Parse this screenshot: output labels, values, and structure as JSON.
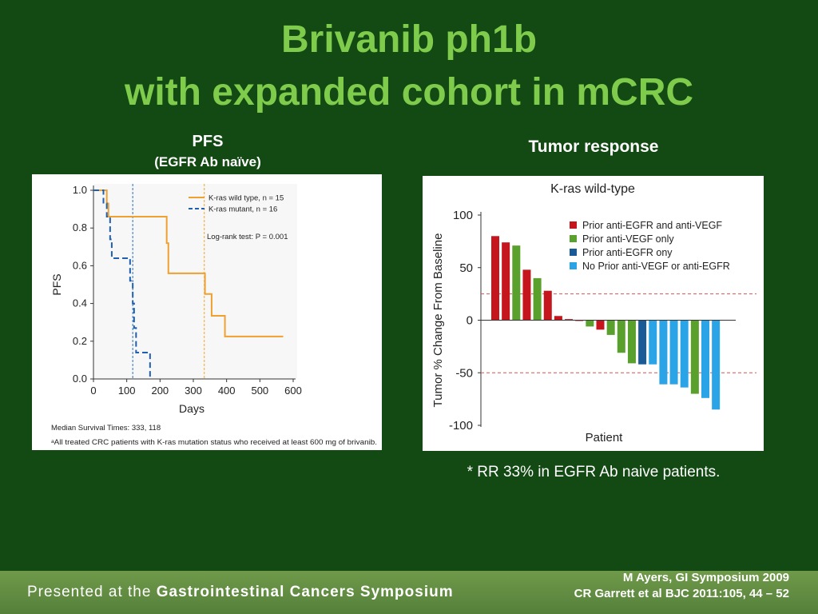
{
  "slide": {
    "title_line1": "Brivanib ph1b",
    "title_line2": "with expanded cohort in mCRC",
    "pfs_heading": "PFS",
    "pfs_subheading": "(EGFR Ab naïve)",
    "tumor_heading": "Tumor response",
    "note": "* RR 33% in EGFR Ab naive patients.",
    "footer_prefix": "Presented at the ",
    "footer_name": "Gastrointestinal Cancers Symposium",
    "citation_1": "M Ayers, GI Symposium 2009",
    "citation_2": "CR Garrett et al BJC 2011:105, 44 – 52"
  },
  "chart_data": [
    {
      "type": "line",
      "ylabel": "PFS",
      "xlabel": "Days",
      "xlim": [
        0,
        600
      ],
      "ylim": [
        0,
        1.0
      ],
      "xticks": [
        "0",
        "100",
        "200",
        "300",
        "400",
        "500",
        "600"
      ],
      "yticks": [
        "0.0",
        "0.2",
        "0.4",
        "0.6",
        "0.8",
        "1.0"
      ],
      "grid": false,
      "legend_position": "top-right",
      "annotation": "Log-rank test: P = 0.001",
      "footnote_1": "Median Survival Times: 333, 118",
      "footnote_2": "ᵃAll treated CRC patients with K-ras mutation status who received at least 600 mg of brivanib.",
      "median_lines": [
        {
          "x": 333,
          "color": "#f5a623"
        },
        {
          "x": 118,
          "color": "#2a6ebb"
        }
      ],
      "series": [
        {
          "name": "K-ras wild type, n = 15",
          "color": "#f0a030",
          "style": "solid",
          "x": [
            0,
            40,
            40,
            45,
            45,
            220,
            220,
            225,
            225,
            335,
            335,
            355,
            355,
            395,
            395,
            570
          ],
          "y": [
            1.0,
            1.0,
            0.93,
            0.93,
            0.86,
            0.86,
            0.72,
            0.72,
            0.56,
            0.56,
            0.45,
            0.45,
            0.335,
            0.335,
            0.225,
            0.225
          ]
        },
        {
          "name": "K-ras mutant, n = 16",
          "color": "#1f5fb0",
          "style": "dashed",
          "x": [
            0,
            30,
            30,
            40,
            40,
            50,
            50,
            55,
            55,
            110,
            110,
            118,
            118,
            122,
            122,
            128,
            128,
            170,
            170
          ],
          "y": [
            1.0,
            1.0,
            0.93,
            0.93,
            0.86,
            0.86,
            0.74,
            0.74,
            0.64,
            0.64,
            0.52,
            0.52,
            0.4,
            0.4,
            0.27,
            0.27,
            0.14,
            0.14,
            0.0
          ]
        }
      ]
    },
    {
      "type": "bar",
      "title": "K-ras wild-type",
      "ylabel": "Tumor % Change From Baseline",
      "xlabel": "Patient",
      "ylim": [
        -100,
        100
      ],
      "yticks": [
        "100",
        "50",
        "0",
        "-50",
        "-100"
      ],
      "reference_lines": [
        25,
        -50
      ],
      "legend_position": "top-right",
      "legend": [
        {
          "label": "Prior anti-EGFR and anti-VEGF",
          "color": "#c4161c"
        },
        {
          "label": "Prior anti-VEGF only",
          "color": "#5aa02c"
        },
        {
          "label": "Prior anti-EGFR ony",
          "color": "#1a5a96"
        },
        {
          "label": "No Prior anti-VEGF or anti-EGFR",
          "color": "#2aa4e6"
        }
      ],
      "values": [
        80,
        74,
        71,
        48,
        40,
        28,
        4,
        1,
        0,
        -6,
        -9,
        -14,
        -31,
        -41,
        -42,
        -42,
        -61,
        -61,
        -64,
        -70,
        -74,
        -85
      ],
      "categories_group": [
        0,
        0,
        1,
        0,
        1,
        0,
        0,
        0,
        0,
        1,
        0,
        1,
        1,
        1,
        2,
        3,
        3,
        3,
        3,
        1,
        3,
        3
      ]
    }
  ]
}
